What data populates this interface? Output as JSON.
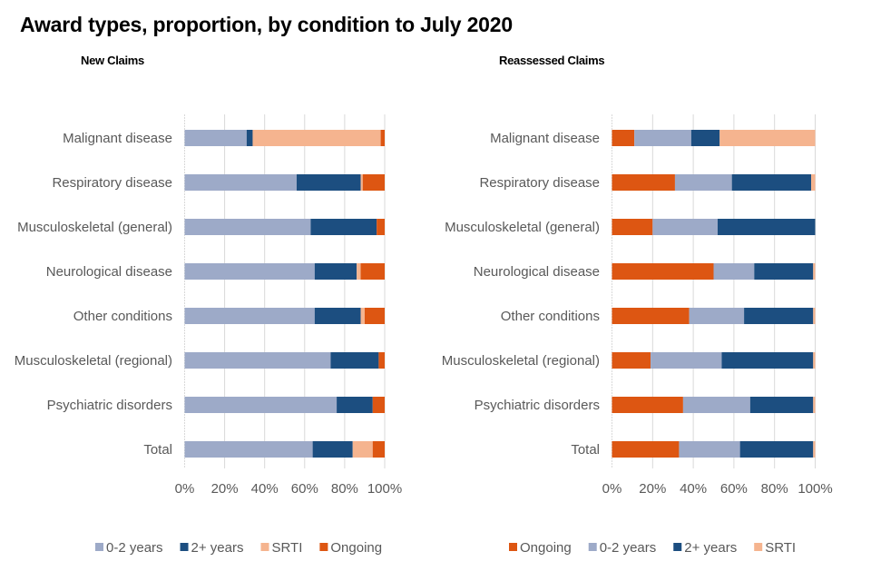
{
  "title": "Award types, proportion, by condition to July 2020",
  "colors": {
    "0-2 years": "#9DAAC8",
    "2+ years": "#1C4E80",
    "SRTI": "#F5B48F",
    "Ongoing": "#DD5612",
    "grid": "#D9D9D9",
    "text": "#595959"
  },
  "chart_data": [
    {
      "type": "bar",
      "orientation": "horizontal",
      "stacked": true,
      "title": "New Claims",
      "categories": [
        "Malignant disease",
        "Respiratory disease",
        "Musculoskeletal (general)",
        "Neurological disease",
        "Other conditions",
        "Musculoskeletal (regional)",
        "Psychiatric disorders",
        "Total"
      ],
      "series": [
        {
          "name": "0-2 years",
          "values": [
            31,
            56,
            63,
            65,
            65,
            73,
            76,
            64
          ]
        },
        {
          "name": "2+ years",
          "values": [
            3,
            32,
            33,
            21,
            23,
            24,
            18,
            20
          ]
        },
        {
          "name": "SRTI",
          "values": [
            64,
            1,
            0,
            2,
            2,
            0,
            0,
            10
          ]
        },
        {
          "name": "Ongoing",
          "values": [
            2,
            11,
            4,
            12,
            10,
            3,
            6,
            6
          ]
        }
      ],
      "xlabel": "",
      "ylabel": "",
      "xlim": [
        0,
        100
      ],
      "xticks": [
        "0%",
        "20%",
        "40%",
        "60%",
        "80%",
        "100%"
      ],
      "grid": true,
      "legend": [
        "0-2 years",
        "2+ years",
        "SRTI",
        "Ongoing"
      ],
      "legend_position": "bottom"
    },
    {
      "type": "bar",
      "orientation": "horizontal",
      "stacked": true,
      "title": "Reassessed Claims",
      "categories": [
        "Malignant disease",
        "Respiratory disease",
        "Musculoskeletal (general)",
        "Neurological disease",
        "Other conditions",
        "Musculoskeletal (regional)",
        "Psychiatric disorders",
        "Total"
      ],
      "series": [
        {
          "name": "Ongoing",
          "values": [
            11,
            31,
            20,
            50,
            38,
            19,
            35,
            33
          ]
        },
        {
          "name": "0-2 years",
          "values": [
            28,
            28,
            32,
            20,
            27,
            35,
            33,
            30
          ]
        },
        {
          "name": "2+ years",
          "values": [
            14,
            39,
            48,
            29,
            34,
            45,
            31,
            36
          ]
        },
        {
          "name": "SRTI",
          "values": [
            47,
            2,
            0,
            1,
            1,
            1,
            1,
            1
          ]
        }
      ],
      "xlabel": "",
      "ylabel": "",
      "xlim": [
        0,
        100
      ],
      "xticks": [
        "0%",
        "20%",
        "40%",
        "60%",
        "80%",
        "100%"
      ],
      "grid": true,
      "legend": [
        "Ongoing",
        "0-2 years",
        "2+ years",
        "SRTI"
      ],
      "legend_position": "bottom"
    }
  ]
}
